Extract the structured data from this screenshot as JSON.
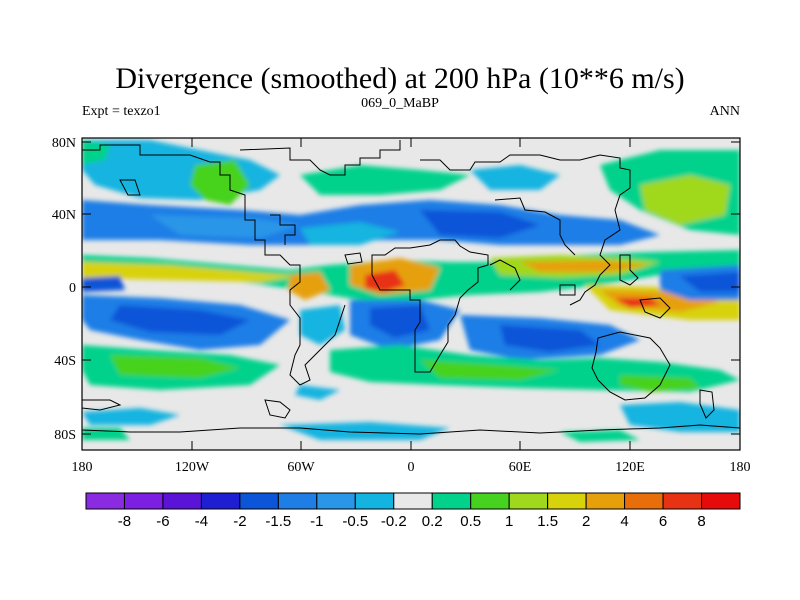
{
  "title": "Divergence (smoothed) at 200 hPa (10**6 m/s)",
  "subtitle_left": "Expt = texzo1",
  "subtitle_center": "069_0_MaBP",
  "subtitle_right": "ANN",
  "lat_ticks": [
    "80N",
    "40N",
    "0",
    "40S",
    "80S"
  ],
  "lon_ticks": [
    "180",
    "120W",
    "60W",
    "0",
    "60E",
    "120E",
    "180"
  ],
  "colorbar": {
    "colors": [
      "#8a2be2",
      "#7d1ee3",
      "#5a14d8",
      "#1e1ed2",
      "#0a55d8",
      "#1e7ee6",
      "#2a96e8",
      "#14b4e0",
      "#e8e8e8",
      "#00d28c",
      "#46d21e",
      "#a0d81e",
      "#d8d20a",
      "#e6a00a",
      "#e86e0a",
      "#e83214",
      "#e60a0a"
    ],
    "labels": [
      "-8",
      "-6",
      "-4",
      "-2",
      "-1.5",
      "-1",
      "-0.5",
      "-0.2",
      "0.2",
      "0.5",
      "1",
      "1.5",
      "2",
      "4",
      "6",
      "8"
    ]
  }
}
